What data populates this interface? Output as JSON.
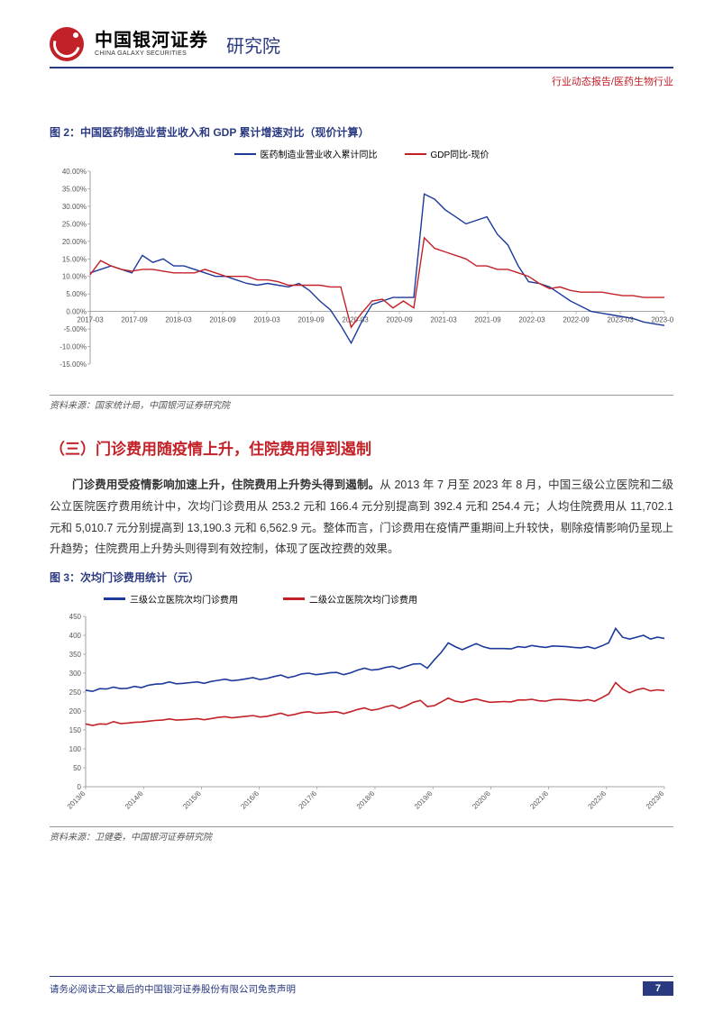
{
  "header": {
    "brand_cn": "中国银河证券",
    "brand_en": "CHINA GALAXY SECURITIES",
    "suffix": "研究院",
    "tagline": "行业动态报告/医药生物行业"
  },
  "figure2": {
    "caption": "图 2：中国医药制造业营业收入和 GDP 累计增速对比（现价计算）",
    "type": "line",
    "legend": [
      {
        "label": "医药制造业营业收入累计同比",
        "color": "#1c3a9c"
      },
      {
        "label": "GDP同比-现价",
        "color": "#c32128"
      }
    ],
    "background_color": "#ffffff",
    "axis_color": "#888888",
    "grid_color": "#e8e8e8",
    "y_ticks": [
      -15,
      -10,
      -5,
      0,
      5,
      10,
      15,
      20,
      25,
      30,
      35,
      40
    ],
    "y_tick_labels": [
      "-15.00%",
      "-10.00%",
      "-5.00%",
      "0.00%",
      "5.00%",
      "10.00%",
      "15.00%",
      "20.00%",
      "25.00%",
      "30.00%",
      "35.00%",
      "40.00%"
    ],
    "x_ticks": [
      "2017-03",
      "2017-09",
      "2018-03",
      "2018-09",
      "2019-03",
      "2019-09",
      "2020-03",
      "2020-09",
      "2021-03",
      "2021-09",
      "2022-03",
      "2022-09",
      "2023-03",
      "2023-09"
    ],
    "series_blue": [
      11,
      12,
      13,
      12,
      11,
      16,
      14,
      15,
      13,
      13,
      12,
      11,
      10,
      10,
      9,
      8,
      7.5,
      8,
      7.5,
      7,
      8,
      6,
      3,
      0.5,
      -4,
      -9,
      -3,
      2,
      3,
      4,
      4,
      4,
      33.5,
      32,
      29,
      27,
      25,
      26,
      27,
      22,
      19,
      13,
      8.5,
      8,
      7,
      5,
      3,
      1.5,
      0,
      -0.5,
      -1,
      -1.5,
      -2,
      -3,
      -3.5,
      -4
    ],
    "series_red": [
      10.5,
      14.5,
      13,
      12,
      11.5,
      12,
      12,
      11.5,
      11,
      11,
      11,
      12,
      11,
      10,
      10,
      10,
      9,
      9,
      8.5,
      7.5,
      7.5,
      7.5,
      7.5,
      7,
      7,
      -4.5,
      -0.5,
      3,
      3.5,
      1,
      3,
      1,
      21,
      18,
      17,
      16,
      15,
      13,
      13,
      12,
      12,
      11,
      10,
      8,
      6.5,
      7,
      6,
      5.5,
      5.5,
      5.5,
      5,
      4.5,
      4.5,
      4,
      4,
      4
    ],
    "source": "资料来源：国家统计局，中国银河证券研究院"
  },
  "section": {
    "heading": "（三）门诊费用随疫情上升，住院费用得到遏制",
    "paragraph_lead": "门诊费用受疫情影响加速上升，住院费用上升势头得到遏制。",
    "paragraph_rest": "从 2013 年 7 月至 2023 年 8 月，中国三级公立医院和二级公立医院医疗费用统计中，次均门诊费用从 253.2 元和 166.4 元分别提高到 392.4 元和 254.4 元；人均住院费用从 11,702.1 元和 5,010.7 元分别提高到 13,190.3 元和 6,562.9 元。整体而言，门诊费用在疫情严重期间上升较快，剔除疫情影响仍呈现上升趋势；住院费用上升势头则得到有效控制，体现了医改控费的效果。"
  },
  "figure3": {
    "caption": "图 3：次均门诊费用统计（元）",
    "type": "line",
    "legend": [
      {
        "label": "三级公立医院次均门诊费用",
        "color": "#1c3a9c"
      },
      {
        "label": "二级公立医院次均门诊费用",
        "color": "#c32128"
      }
    ],
    "background_color": "#ffffff",
    "axis_color": "#888888",
    "y_ticks": [
      0,
      50,
      100,
      150,
      200,
      250,
      300,
      350,
      400,
      450
    ],
    "x_ticks": [
      "2013/6",
      "2014/6",
      "2015/6",
      "2016/6",
      "2017/6",
      "2018/6",
      "2019/6",
      "2020/6",
      "2021/6",
      "2022/6",
      "2023/6"
    ],
    "series_blue": [
      255,
      252,
      259,
      258,
      263,
      259,
      260,
      265,
      262,
      268,
      271,
      272,
      277,
      272,
      273,
      275,
      277,
      273,
      278,
      281,
      284,
      280,
      282,
      285,
      288,
      283,
      286,
      291,
      295,
      288,
      292,
      298,
      300,
      296,
      298,
      301,
      302,
      296,
      301,
      308,
      313,
      308,
      310,
      315,
      318,
      312,
      318,
      324,
      325,
      313,
      335,
      355,
      380,
      370,
      362,
      370,
      378,
      370,
      365,
      365,
      365,
      364,
      370,
      368,
      373,
      370,
      368,
      372,
      371,
      370,
      368,
      367,
      370,
      365,
      372,
      380,
      418,
      395,
      390,
      395,
      400,
      390,
      395,
      392
    ],
    "series_red": [
      166,
      162,
      166,
      165,
      172,
      167,
      168,
      170,
      171,
      173,
      175,
      176,
      179,
      176,
      177,
      178,
      180,
      177,
      180,
      183,
      185,
      182,
      184,
      186,
      188,
      184,
      186,
      190,
      194,
      188,
      191,
      196,
      198,
      194,
      195,
      197,
      198,
      193,
      198,
      204,
      208,
      202,
      205,
      211,
      215,
      207,
      214,
      223,
      228,
      212,
      214,
      224,
      234,
      226,
      223,
      228,
      232,
      227,
      223,
      224,
      225,
      224,
      229,
      229,
      231,
      227,
      226,
      230,
      231,
      230,
      228,
      227,
      230,
      226,
      235,
      245,
      275,
      258,
      248,
      256,
      260,
      253,
      256,
      254
    ],
    "source": "资料来源：卫健委，中国银河证券研究院"
  },
  "footer": {
    "disclaimer": "请务必阅读正文最后的中国银河证券股份有限公司免责声明",
    "page": "7"
  }
}
